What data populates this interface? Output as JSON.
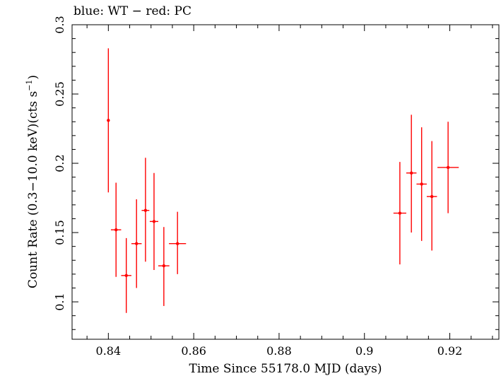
{
  "chart_data": {
    "type": "scatter",
    "title": "blue: WT − red: PC",
    "xlabel": "Time Since 55178.0 MJD (days)",
    "ylabel_main": "Count Rate (0.3−10.0 keV)(cts s",
    "ylabel_sup": "−1",
    "ylabel_end": ")",
    "xlim": [
      0.8315,
      0.9315
    ],
    "ylim": [
      0.073,
      0.3
    ],
    "x_ticks": [
      0.84,
      0.86,
      0.88,
      0.9,
      0.92
    ],
    "x_tick_labels": [
      "0.84",
      "0.86",
      "0.88",
      "0.9",
      "0.92"
    ],
    "y_ticks": [
      0.1,
      0.15,
      0.2,
      0.25,
      0.3
    ],
    "y_tick_labels": [
      "0.1",
      "0.15",
      "0.2",
      "0.25",
      "0.3"
    ],
    "grid": false,
    "series": [
      {
        "color": "#ff0000",
        "points": [
          {
            "x": 0.84,
            "xerr": 0.0003,
            "y": 0.231,
            "ylo": 0.179,
            "yhi": 0.283
          },
          {
            "x": 0.8418,
            "xerr": 0.0012,
            "y": 0.152,
            "ylo": 0.118,
            "yhi": 0.186
          },
          {
            "x": 0.8442,
            "xerr": 0.0012,
            "y": 0.119,
            "ylo": 0.092,
            "yhi": 0.146
          },
          {
            "x": 0.8466,
            "xerr": 0.0012,
            "y": 0.142,
            "ylo": 0.11,
            "yhi": 0.174
          },
          {
            "x": 0.8487,
            "xerr": 0.0009,
            "y": 0.166,
            "ylo": 0.129,
            "yhi": 0.204
          },
          {
            "x": 0.8507,
            "xerr": 0.001,
            "y": 0.158,
            "ylo": 0.123,
            "yhi": 0.193
          },
          {
            "x": 0.853,
            "xerr": 0.0013,
            "y": 0.126,
            "ylo": 0.097,
            "yhi": 0.154
          },
          {
            "x": 0.8562,
            "xerr": 0.002,
            "y": 0.142,
            "ylo": 0.12,
            "yhi": 0.165
          },
          {
            "x": 0.9083,
            "xerr": 0.0015,
            "y": 0.164,
            "ylo": 0.127,
            "yhi": 0.201
          },
          {
            "x": 0.911,
            "xerr": 0.0012,
            "y": 0.193,
            "ylo": 0.15,
            "yhi": 0.235
          },
          {
            "x": 0.9134,
            "xerr": 0.0012,
            "y": 0.185,
            "ylo": 0.144,
            "yhi": 0.226
          },
          {
            "x": 0.9158,
            "xerr": 0.0012,
            "y": 0.176,
            "ylo": 0.137,
            "yhi": 0.216
          },
          {
            "x": 0.9196,
            "xerr": 0.0025,
            "y": 0.197,
            "ylo": 0.164,
            "yhi": 0.23
          }
        ]
      }
    ]
  }
}
